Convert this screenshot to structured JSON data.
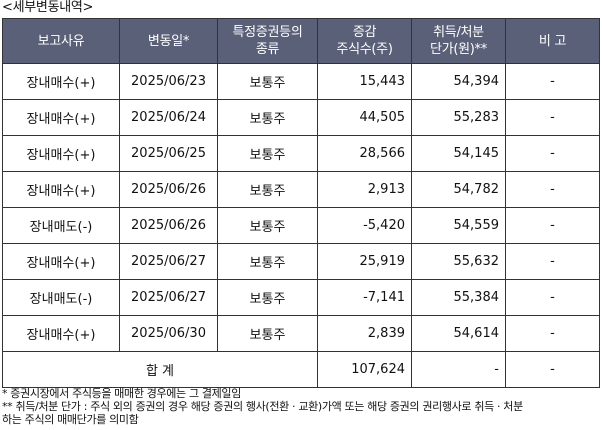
{
  "caption": "<세부변동내역>",
  "headers": {
    "reason": "보고사유",
    "date": "변동일*",
    "security_type_line1": "특정증권등의",
    "security_type_line2": "종류",
    "change_line1": "증감",
    "change_line2": "주식수(주)",
    "price_line1": "취득/처분",
    "price_line2": "단가(원)**",
    "remarks": "비 고"
  },
  "rows": [
    {
      "reason": "장내매수(+)",
      "date": "2025/06/23",
      "type": "보통주",
      "change": "15,443",
      "price": "54,394",
      "remarks": "-"
    },
    {
      "reason": "장내매수(+)",
      "date": "2025/06/24",
      "type": "보통주",
      "change": "44,505",
      "price": "55,283",
      "remarks": "-"
    },
    {
      "reason": "장내매수(+)",
      "date": "2025/06/25",
      "type": "보통주",
      "change": "28,566",
      "price": "54,145",
      "remarks": "-"
    },
    {
      "reason": "장내매수(+)",
      "date": "2025/06/26",
      "type": "보통주",
      "change": "2,913",
      "price": "54,782",
      "remarks": "-"
    },
    {
      "reason": "장내매도(-)",
      "date": "2025/06/26",
      "type": "보통주",
      "change": "-5,420",
      "price": "54,559",
      "remarks": "-"
    },
    {
      "reason": "장내매수(+)",
      "date": "2025/06/27",
      "type": "보통주",
      "change": "25,919",
      "price": "55,632",
      "remarks": "-"
    },
    {
      "reason": "장내매도(-)",
      "date": "2025/06/27",
      "type": "보통주",
      "change": "-7,141",
      "price": "55,384",
      "remarks": "-"
    },
    {
      "reason": "장내매수(+)",
      "date": "2025/06/30",
      "type": "보통주",
      "change": "2,839",
      "price": "54,614",
      "remarks": "-"
    }
  ],
  "total": {
    "label": "합 계",
    "change": "107,624",
    "price": "-",
    "remarks": "-"
  },
  "notes": {
    "note1": "* 증권시장에서 주식등을 매매한 경우에는 그 결제일임",
    "note2_line1": "** 취득/처분 단가 : 주식 외의 증권의 경우 해당 증권의 행사(전환 · 교환)가액 또는 해당 증권의 권리행사로 취득 · 처분",
    "note2_line2": "하는 주식의 매매단가를 의미함"
  },
  "colors": {
    "header_bg": "#5a6078",
    "header_text": "#ffffff",
    "border": "#333333"
  }
}
